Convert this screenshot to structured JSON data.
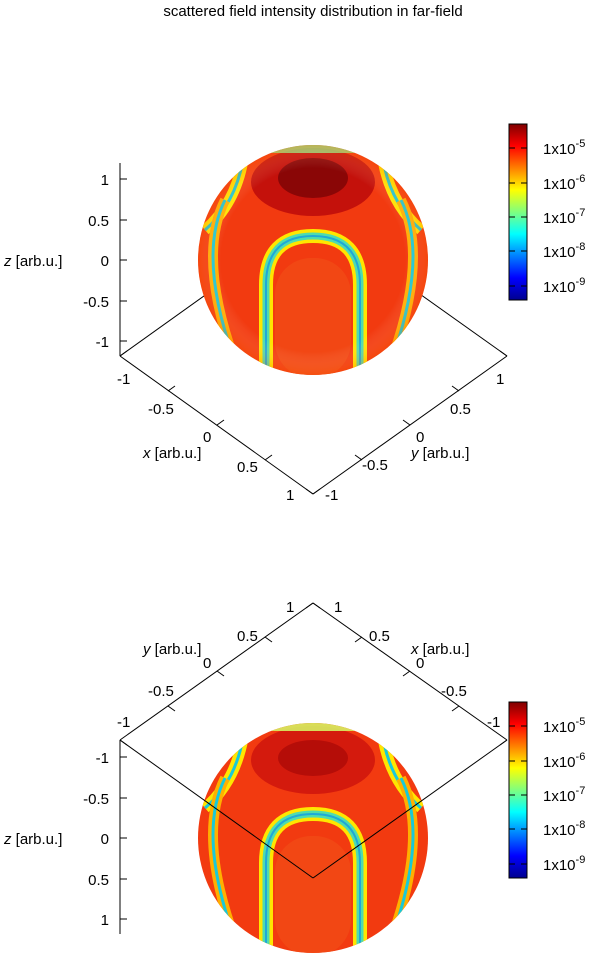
{
  "chart_data": {
    "type": "heatmap",
    "title": "scattered field intensity distribution in far-field",
    "panels": [
      {
        "view": "from-above",
        "axes": {
          "x": {
            "label_var": "x",
            "label_unit": "[arb.u.]",
            "range": [
              -1,
              1
            ],
            "ticks": [
              "-1",
              "-0.5",
              "0",
              "0.5",
              "1"
            ]
          },
          "y": {
            "label_var": "y",
            "label_unit": "[arb.u.]",
            "range": [
              -1,
              1
            ],
            "ticks": [
              "-1",
              "-0.5",
              "0",
              "0.5",
              "1"
            ]
          },
          "z": {
            "label_var": "z",
            "label_unit": "[arb.u.]",
            "range": [
              -1,
              1
            ],
            "ticks": [
              "1",
              "0.5",
              "0",
              "-0.5",
              "-1"
            ]
          }
        },
        "colorbar": {
          "scale": "log",
          "range": [
            1e-09,
            1e-05
          ],
          "ticks": [
            {
              "base": "1x10",
              "exp": "-5"
            },
            {
              "base": "1x10",
              "exp": "-6"
            },
            {
              "base": "1x10",
              "exp": "-7"
            },
            {
              "base": "1x10",
              "exp": "-8"
            },
            {
              "base": "1x10",
              "exp": "-9"
            }
          ]
        }
      },
      {
        "view": "from-below",
        "axes": {
          "x": {
            "label_var": "x",
            "label_unit": "[arb.u.]",
            "range": [
              -1,
              1
            ],
            "ticks": [
              "1",
              "0.5",
              "0",
              "-0.5",
              "-1"
            ]
          },
          "y": {
            "label_var": "y",
            "label_unit": "[arb.u.]",
            "range": [
              -1,
              1
            ],
            "ticks": [
              "1",
              "0.5",
              "0",
              "-0.5",
              "-1"
            ]
          },
          "z": {
            "label_var": "z",
            "label_unit": "[arb.u.]",
            "range": [
              -1,
              1
            ],
            "ticks": [
              "-1",
              "-0.5",
              "0",
              "0.5",
              "1"
            ]
          }
        },
        "colorbar": {
          "scale": "log",
          "range": [
            1e-09,
            1e-05
          ],
          "ticks": [
            {
              "base": "1x10",
              "exp": "-5"
            },
            {
              "base": "1x10",
              "exp": "-6"
            },
            {
              "base": "1x10",
              "exp": "-7"
            },
            {
              "base": "1x10",
              "exp": "-8"
            },
            {
              "base": "1x10",
              "exp": "-9"
            }
          ]
        }
      }
    ]
  }
}
